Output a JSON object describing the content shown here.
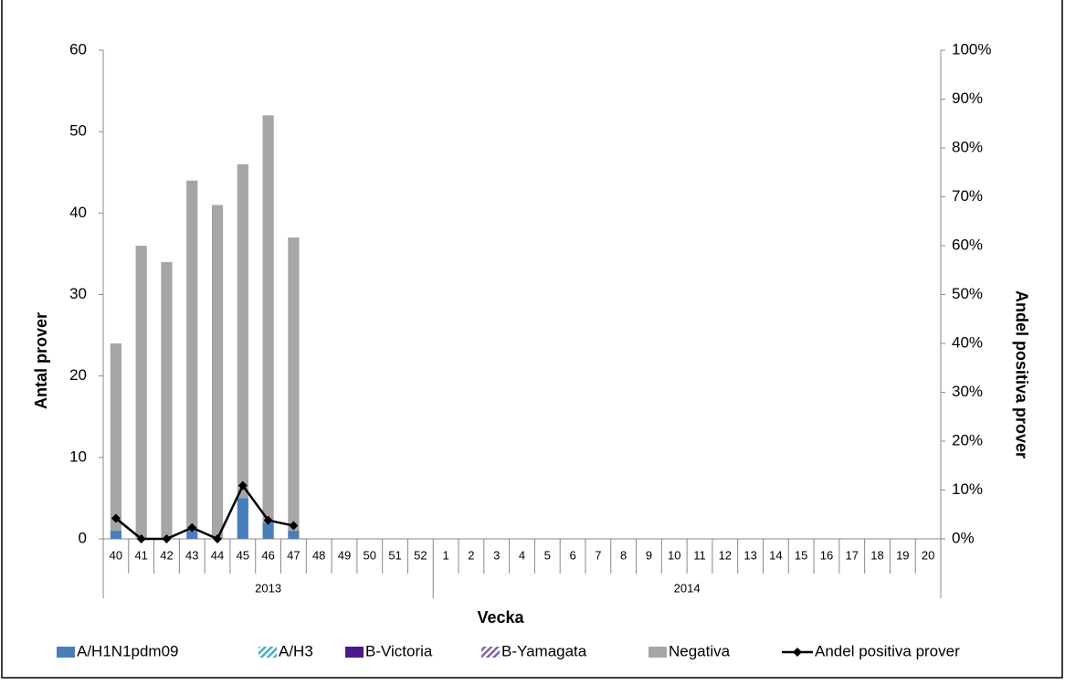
{
  "chart_data": {
    "type": "bar",
    "stacked": true,
    "categories": [
      "40",
      "41",
      "42",
      "43",
      "44",
      "45",
      "46",
      "47",
      "48",
      "49",
      "50",
      "51",
      "52",
      "1",
      "2",
      "3",
      "4",
      "5",
      "6",
      "7",
      "8",
      "9",
      "10",
      "11",
      "12",
      "13",
      "14",
      "15",
      "16",
      "17",
      "18",
      "19",
      "20"
    ],
    "category_years": [
      "2013",
      "2013",
      "2013",
      "2013",
      "2013",
      "2013",
      "2013",
      "2013",
      "2013",
      "2013",
      "2013",
      "2013",
      "2013",
      "2014",
      "2014",
      "2014",
      "2014",
      "2014",
      "2014",
      "2014",
      "2014",
      "2014",
      "2014",
      "2014",
      "2014",
      "2014",
      "2014",
      "2014",
      "2014",
      "2014",
      "2014",
      "2014",
      "2014"
    ],
    "xlabel": "Vecka",
    "ylabel": "Antal prover",
    "y2label": "Andel positiva prover",
    "ylim": [
      0,
      60
    ],
    "yticks": [
      0,
      10,
      20,
      30,
      40,
      50,
      60
    ],
    "y2lim": [
      0,
      100
    ],
    "y2ticks": [
      {
        "value": 0,
        "label": "0%"
      },
      {
        "value": 10,
        "label": "10%"
      },
      {
        "value": 20,
        "label": "20%"
      },
      {
        "value": 30,
        "label": "30%"
      },
      {
        "value": 40,
        "label": "40%"
      },
      {
        "value": 50,
        "label": "50%"
      },
      {
        "value": 60,
        "label": "60%"
      },
      {
        "value": 70,
        "label": "70%"
      },
      {
        "value": 80,
        "label": "80%"
      },
      {
        "value": 90,
        "label": "90%"
      },
      {
        "value": 100,
        "label": "100%"
      }
    ],
    "legend": "bottom",
    "series": [
      {
        "name": "A/H1N1pdm09",
        "color": "#4a7ebb",
        "values": [
          1,
          0,
          0,
          1,
          0,
          5,
          2,
          1,
          null,
          null,
          null,
          null,
          null,
          null,
          null,
          null,
          null,
          null,
          null,
          null,
          null,
          null,
          null,
          null,
          null,
          null,
          null,
          null,
          null,
          null,
          null,
          null,
          null
        ]
      },
      {
        "name": "A/H3",
        "color": "#4bacc6",
        "pattern": "hatch",
        "values": [
          0,
          0,
          0,
          0,
          0,
          0,
          0,
          0,
          null,
          null,
          null,
          null,
          null,
          null,
          null,
          null,
          null,
          null,
          null,
          null,
          null,
          null,
          null,
          null,
          null,
          null,
          null,
          null,
          null,
          null,
          null,
          null,
          null
        ]
      },
      {
        "name": "B-Victoria",
        "color": "#4b1a8a",
        "values": [
          0,
          0,
          0,
          0,
          0,
          0,
          0,
          0,
          null,
          null,
          null,
          null,
          null,
          null,
          null,
          null,
          null,
          null,
          null,
          null,
          null,
          null,
          null,
          null,
          null,
          null,
          null,
          null,
          null,
          null,
          null,
          null,
          null
        ]
      },
      {
        "name": "B-Yamagata",
        "color": "#8064a2",
        "pattern": "hatch",
        "values": [
          0,
          0,
          0,
          0,
          0,
          0,
          0,
          0,
          null,
          null,
          null,
          null,
          null,
          null,
          null,
          null,
          null,
          null,
          null,
          null,
          null,
          null,
          null,
          null,
          null,
          null,
          null,
          null,
          null,
          null,
          null,
          null,
          null
        ]
      },
      {
        "name": "Negativa",
        "color": "#a6a6a6",
        "values": [
          23,
          36,
          34,
          43,
          41,
          41,
          50,
          36,
          null,
          null,
          null,
          null,
          null,
          null,
          null,
          null,
          null,
          null,
          null,
          null,
          null,
          null,
          null,
          null,
          null,
          null,
          null,
          null,
          null,
          null,
          null,
          null,
          null
        ]
      },
      {
        "name": "Andel positiva prover",
        "type": "line",
        "axis": "y2",
        "color": "#000000",
        "values": [
          4.2,
          0,
          0,
          2.3,
          0,
          10.9,
          3.8,
          2.7,
          null,
          null,
          null,
          null,
          null,
          null,
          null,
          null,
          null,
          null,
          null,
          null,
          null,
          null,
          null,
          null,
          null,
          null,
          null,
          null,
          null,
          null,
          null,
          null,
          null
        ]
      }
    ]
  }
}
